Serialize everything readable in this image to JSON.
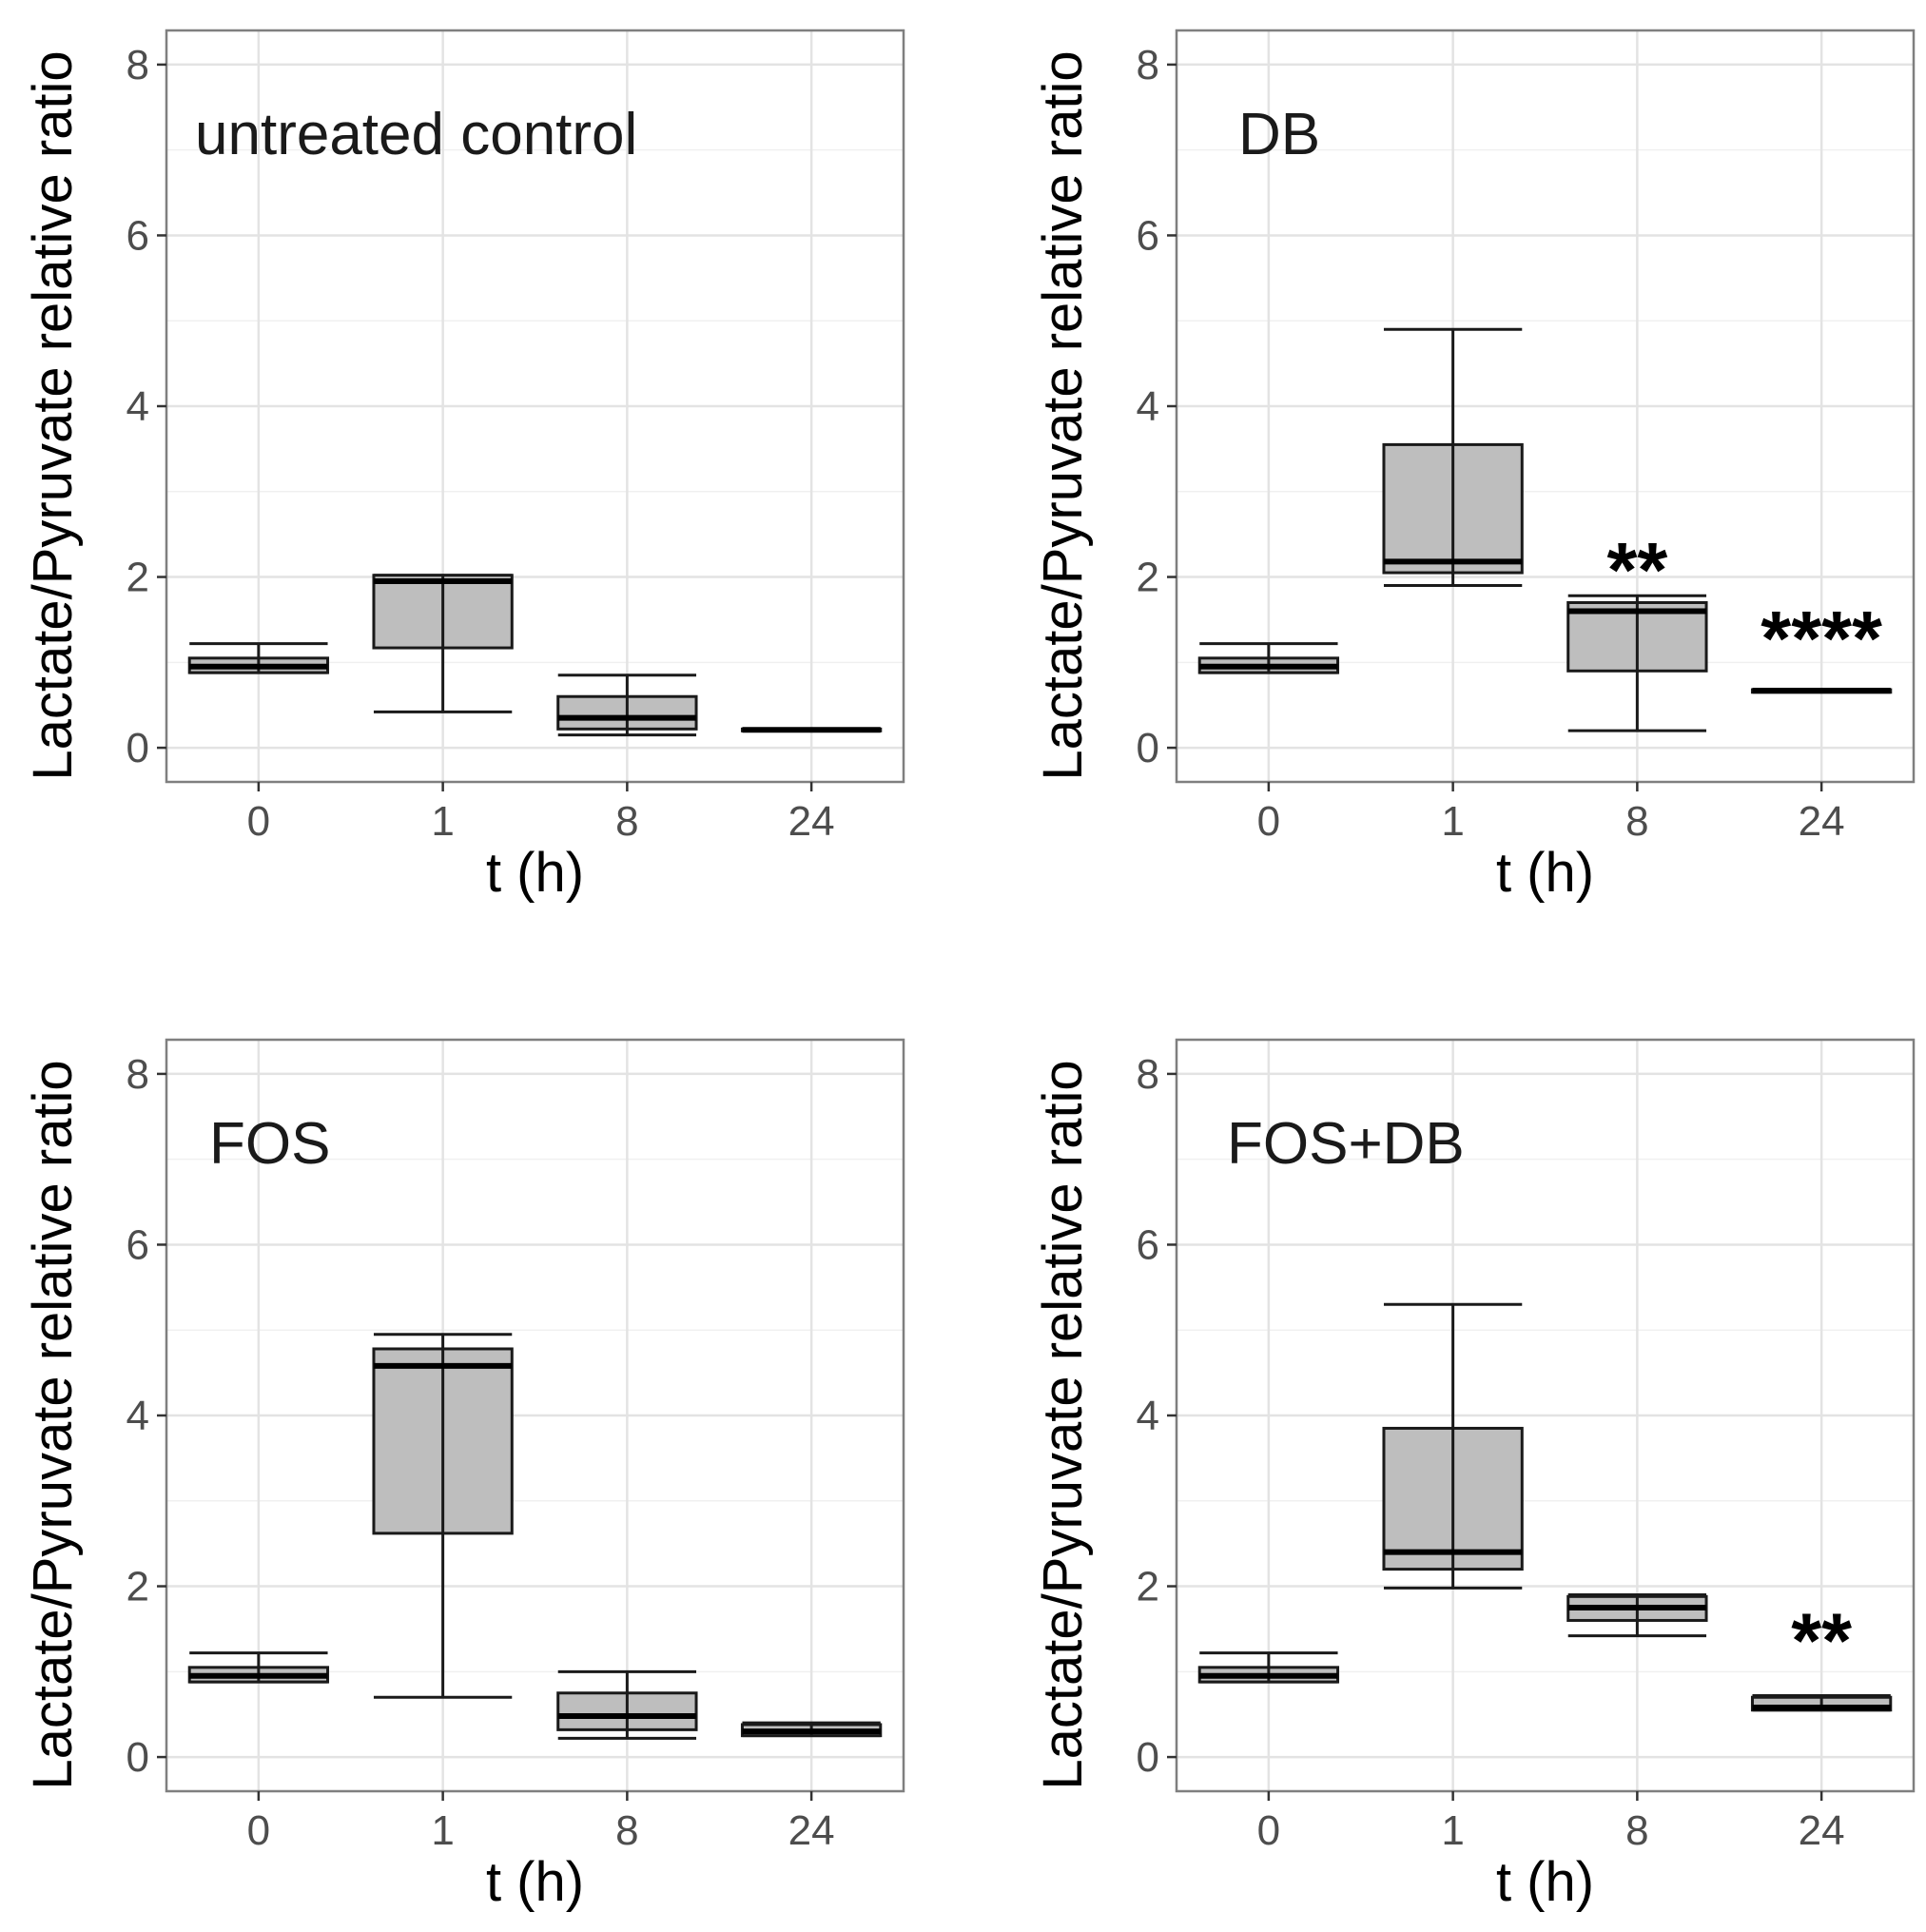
{
  "chart_data": [
    {
      "type": "box",
      "title": "untreated control",
      "xlabel": "t (h)",
      "ylabel": "Lactate/Pyruvate relative ratio",
      "categories": [
        "0",
        "1",
        "8",
        "24"
      ],
      "ylim": [
        -0.4,
        8.4
      ],
      "yticks": [
        0,
        2,
        4,
        6,
        8
      ],
      "fill_color": "#bebebe",
      "boxes": [
        {
          "category": "0",
          "whisker_low": 0.88,
          "q1": 0.88,
          "median": 0.95,
          "q3": 1.05,
          "whisker_high": 1.22
        },
        {
          "category": "1",
          "whisker_low": 0.42,
          "q1": 1.17,
          "median": 1.95,
          "q3": 2.02,
          "whisker_high": 2.02
        },
        {
          "category": "8",
          "whisker_low": 0.15,
          "q1": 0.22,
          "median": 0.35,
          "q3": 0.6,
          "whisker_high": 0.85
        },
        {
          "category": "24",
          "whisker_low": 0.21,
          "q1": 0.21,
          "median": 0.21,
          "q3": 0.22,
          "whisker_high": 0.22
        }
      ],
      "annotations": []
    },
    {
      "type": "box",
      "title": "DB",
      "xlabel": "t (h)",
      "ylabel": "Lactate/Pyruvate relative ratio",
      "categories": [
        "0",
        "1",
        "8",
        "24"
      ],
      "ylim": [
        -0.4,
        8.4
      ],
      "yticks": [
        0,
        2,
        4,
        6,
        8
      ],
      "fill_color": "#bebebe",
      "boxes": [
        {
          "category": "0",
          "whisker_low": 0.88,
          "q1": 0.88,
          "median": 0.95,
          "q3": 1.05,
          "whisker_high": 1.22
        },
        {
          "category": "1",
          "whisker_low": 1.9,
          "q1": 2.05,
          "median": 2.18,
          "q3": 3.55,
          "whisker_high": 4.9
        },
        {
          "category": "8",
          "whisker_low": 0.2,
          "q1": 0.9,
          "median": 1.6,
          "q3": 1.7,
          "whisker_high": 1.78
        },
        {
          "category": "24",
          "whisker_low": 0.65,
          "q1": 0.65,
          "median": 0.67,
          "q3": 0.68,
          "whisker_high": 0.68
        }
      ],
      "annotations": [
        {
          "category": "8",
          "text": "**",
          "y": 2.1
        },
        {
          "category": "24",
          "text": "****",
          "y": 1.3
        }
      ]
    },
    {
      "type": "box",
      "title": "FOS",
      "xlabel": "t (h)",
      "ylabel": "Lactate/Pyruvate relative ratio",
      "categories": [
        "0",
        "1",
        "8",
        "24"
      ],
      "ylim": [
        -0.4,
        8.4
      ],
      "yticks": [
        0,
        2,
        4,
        6,
        8
      ],
      "fill_color": "#bebebe",
      "boxes": [
        {
          "category": "0",
          "whisker_low": 0.88,
          "q1": 0.88,
          "median": 0.95,
          "q3": 1.05,
          "whisker_high": 1.22
        },
        {
          "category": "1",
          "whisker_low": 0.7,
          "q1": 2.62,
          "median": 4.58,
          "q3": 4.78,
          "whisker_high": 4.95
        },
        {
          "category": "8",
          "whisker_low": 0.22,
          "q1": 0.32,
          "median": 0.48,
          "q3": 0.75,
          "whisker_high": 1.0
        },
        {
          "category": "24",
          "whisker_low": 0.25,
          "q1": 0.25,
          "median": 0.3,
          "q3": 0.38,
          "whisker_high": 0.4
        }
      ],
      "annotations": []
    },
    {
      "type": "box",
      "title": "FOS+DB",
      "xlabel": "t (h)",
      "ylabel": "Lactate/Pyruvate relative ratio",
      "categories": [
        "0",
        "1",
        "8",
        "24"
      ],
      "ylim": [
        -0.4,
        8.4
      ],
      "yticks": [
        0,
        2,
        4,
        6,
        8
      ],
      "fill_color": "#bebebe",
      "boxes": [
        {
          "category": "0",
          "whisker_low": 0.88,
          "q1": 0.88,
          "median": 0.95,
          "q3": 1.05,
          "whisker_high": 1.22
        },
        {
          "category": "1",
          "whisker_low": 1.98,
          "q1": 2.2,
          "median": 2.4,
          "q3": 3.85,
          "whisker_high": 5.3
        },
        {
          "category": "8",
          "whisker_low": 1.42,
          "q1": 1.6,
          "median": 1.75,
          "q3": 1.88,
          "whisker_high": 1.9
        },
        {
          "category": "24",
          "whisker_low": 0.55,
          "q1": 0.55,
          "median": 0.58,
          "q3": 0.7,
          "whisker_high": 0.72
        }
      ],
      "annotations": [
        {
          "category": "24",
          "text": "**",
          "y": 1.38
        }
      ]
    }
  ]
}
